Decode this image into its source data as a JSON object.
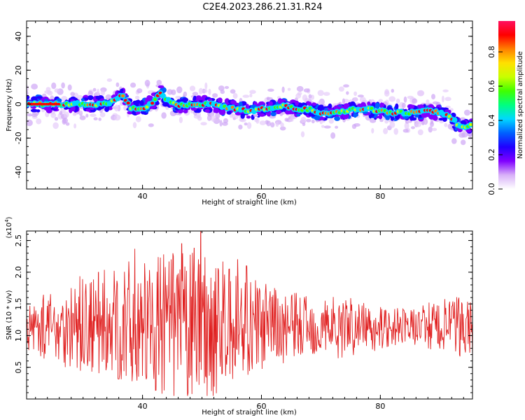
{
  "title": "C2E4.2023.286.21.31.R24",
  "chart_data": [
    {
      "type": "heatmap",
      "title": "",
      "xlabel": "Height of straight line (km)",
      "ylabel": "Frequency (Hz)",
      "xlim": [
        20.5,
        95.5
      ],
      "ylim": [
        -50,
        49
      ],
      "xticks": [
        "40",
        "60",
        "80"
      ],
      "yticks": [
        "40",
        "20",
        "0",
        "-20",
        "-40"
      ],
      "colorbar": {
        "label": "Normalized spectral amplitude",
        "ticks": [
          "0.0",
          "0.2",
          "0.4",
          "0.6",
          "0.8"
        ],
        "range": [
          0,
          0.98
        ],
        "colormap": [
          "#ffffff",
          "#d8b0f8",
          "#8000ff",
          "#2000ff",
          "#0060ff",
          "#00d8ff",
          "#00ff80",
          "#40ff00",
          "#c8ff00",
          "#ffe000",
          "#ff8000",
          "#ff0000",
          "#ff1060"
        ]
      },
      "ridge": {
        "x": [
          20.5,
          22,
          24,
          26,
          28,
          30,
          32,
          34,
          35.5,
          36.5,
          38,
          40,
          42,
          43,
          44,
          46,
          48,
          50,
          52,
          54,
          56,
          58,
          60,
          62,
          64,
          66,
          68,
          70,
          72,
          74,
          76,
          78,
          80,
          82,
          84,
          86,
          88,
          90,
          91,
          92,
          93,
          94,
          95.5
        ],
        "y": [
          0,
          0,
          0,
          0,
          0,
          0,
          0,
          0,
          3,
          6,
          -2,
          -3,
          2,
          7,
          3,
          -1,
          0,
          0,
          0,
          -2,
          -3,
          -4,
          -3,
          -2,
          -1,
          -3,
          -3,
          -5,
          -5,
          -4,
          -3,
          -3,
          -4,
          -5,
          -5,
          -5,
          -4,
          -5,
          -6,
          -8,
          -12,
          -14,
          -12
        ]
      }
    },
    {
      "type": "line",
      "title": "",
      "xlabel": "Height of straight line (km)",
      "ylabel": "SNR (10 * v/v)",
      "scale_label": "(x10",
      "scale_exp": "4",
      "xlim": [
        20.5,
        95.5
      ],
      "ylim": [
        0.0,
        2.65
      ],
      "xticks": [
        "40",
        "60",
        "80"
      ],
      "yticks": [
        "0.5",
        "1.0",
        "1.5",
        "2.0",
        "2.5"
      ],
      "color": "#e02020",
      "envelope": {
        "x": [
          20.5,
          25,
          30,
          33,
          36,
          39,
          42,
          45,
          48,
          50,
          53,
          56,
          60,
          65,
          70,
          75,
          80,
          85,
          90,
          95.5
        ],
        "amp": [
          0.35,
          0.55,
          0.75,
          0.85,
          0.95,
          1.0,
          1.05,
          1.2,
          1.25,
          1.3,
          1.05,
          0.9,
          0.65,
          0.55,
          0.5,
          0.45,
          0.3,
          0.3,
          0.4,
          0.55
        ]
      },
      "peaks": [
        {
          "x": 32.6,
          "y": 2.0
        },
        {
          "x": 38.7,
          "y": 2.37
        },
        {
          "x": 46.6,
          "y": 2.45
        },
        {
          "x": 48.7,
          "y": 2.38
        },
        {
          "x": 49.8,
          "y": 2.65
        },
        {
          "x": 56.0,
          "y": 2.2
        },
        {
          "x": 57.5,
          "y": 2.1
        }
      ]
    }
  ]
}
